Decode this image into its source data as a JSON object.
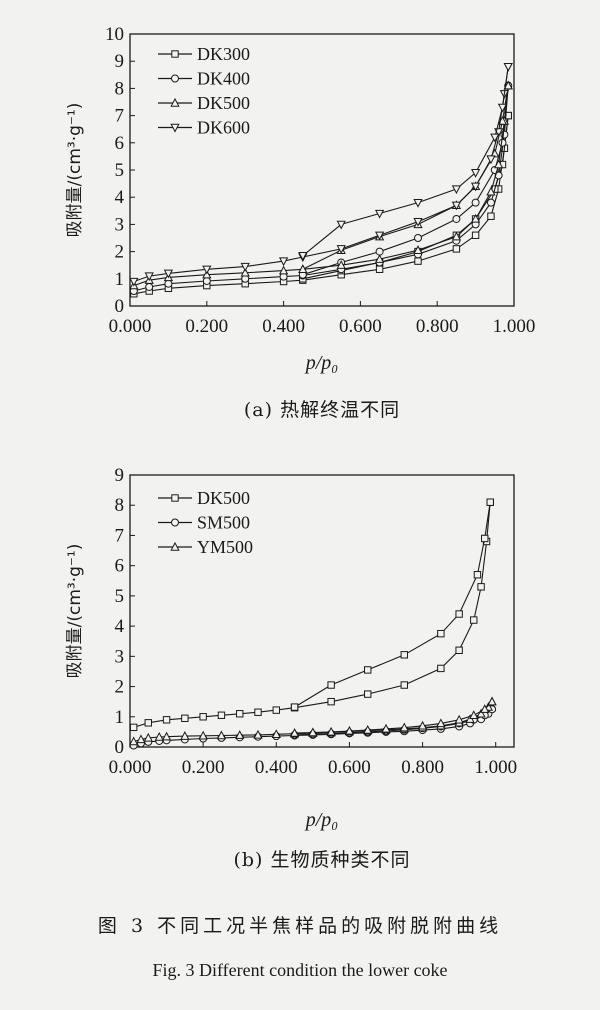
{
  "chart_data": [
    {
      "type": "line",
      "caption": "(a) 热解终温不同",
      "xlabel": "p/p₀",
      "ylabel": "吸附量/(cm³·g⁻¹)",
      "xlim": [
        0,
        1
      ],
      "ylim": [
        0,
        10
      ],
      "xticks": [
        "0.000",
        "0.200",
        "0.400",
        "0.600",
        "0.800",
        "1.000"
      ],
      "yticks": [
        "0",
        "1",
        "2",
        "3",
        "4",
        "5",
        "6",
        "7",
        "8",
        "9",
        "10"
      ],
      "legend_position": "top-left",
      "series": [
        {
          "name": "DK300",
          "marker": "square",
          "adsorption": [
            [
              0.01,
              0.45
            ],
            [
              0.05,
              0.55
            ],
            [
              0.1,
              0.65
            ],
            [
              0.2,
              0.75
            ],
            [
              0.3,
              0.82
            ],
            [
              0.4,
              0.9
            ],
            [
              0.45,
              0.95
            ],
            [
              0.55,
              1.15
            ],
            [
              0.65,
              1.35
            ],
            [
              0.75,
              1.65
            ],
            [
              0.85,
              2.1
            ],
            [
              0.9,
              2.6
            ],
            [
              0.94,
              3.3
            ],
            [
              0.96,
              4.3
            ],
            [
              0.975,
              5.8
            ],
            [
              0.985,
              7.0
            ]
          ],
          "desorption": [
            [
              0.985,
              7.0
            ],
            [
              0.97,
              5.2
            ],
            [
              0.95,
              4.3
            ],
            [
              0.9,
              3.2
            ],
            [
              0.85,
              2.6
            ],
            [
              0.75,
              2.0
            ],
            [
              0.65,
              1.6
            ],
            [
              0.55,
              1.3
            ],
            [
              0.45,
              1.0
            ]
          ]
        },
        {
          "name": "DK400",
          "marker": "circle",
          "adsorption": [
            [
              0.01,
              0.55
            ],
            [
              0.05,
              0.7
            ],
            [
              0.1,
              0.82
            ],
            [
              0.2,
              0.92
            ],
            [
              0.3,
              1.0
            ],
            [
              0.4,
              1.08
            ],
            [
              0.45,
              1.12
            ],
            [
              0.55,
              1.35
            ],
            [
              0.65,
              1.6
            ],
            [
              0.75,
              1.9
            ],
            [
              0.85,
              2.4
            ],
            [
              0.9,
              3.0
            ],
            [
              0.94,
              3.8
            ],
            [
              0.96,
              4.8
            ],
            [
              0.975,
              6.3
            ],
            [
              0.985,
              8.1
            ]
          ],
          "desorption": [
            [
              0.985,
              8.1
            ],
            [
              0.97,
              6.0
            ],
            [
              0.95,
              5.0
            ],
            [
              0.9,
              3.8
            ],
            [
              0.85,
              3.2
            ],
            [
              0.75,
              2.5
            ],
            [
              0.65,
              2.0
            ],
            [
              0.55,
              1.6
            ],
            [
              0.45,
              1.15
            ]
          ]
        },
        {
          "name": "DK500",
          "marker": "triangle-up",
          "adsorption": [
            [
              0.01,
              0.75
            ],
            [
              0.05,
              0.95
            ],
            [
              0.1,
              1.05
            ],
            [
              0.2,
              1.15
            ],
            [
              0.3,
              1.22
            ],
            [
              0.4,
              1.3
            ],
            [
              0.45,
              1.35
            ],
            [
              0.55,
              1.5
            ],
            [
              0.65,
              1.72
            ],
            [
              0.75,
              2.05
            ],
            [
              0.85,
              2.55
            ],
            [
              0.9,
              3.2
            ],
            [
              0.94,
              4.2
            ],
            [
              0.96,
              5.2
            ],
            [
              0.975,
              6.8
            ],
            [
              0.985,
              8.1
            ]
          ],
          "desorption": [
            [
              0.985,
              8.1
            ],
            [
              0.97,
              6.8
            ],
            [
              0.95,
              5.6
            ],
            [
              0.9,
              4.4
            ],
            [
              0.85,
              3.7
            ],
            [
              0.75,
              3.0
            ],
            [
              0.65,
              2.55
            ],
            [
              0.55,
              2.05
            ],
            [
              0.45,
              1.35
            ]
          ]
        },
        {
          "name": "DK600",
          "marker": "triangle-down",
          "adsorption": [
            [
              0.01,
              0.9
            ],
            [
              0.05,
              1.1
            ],
            [
              0.1,
              1.2
            ],
            [
              0.2,
              1.35
            ],
            [
              0.3,
              1.45
            ],
            [
              0.4,
              1.65
            ],
            [
              0.45,
              1.8
            ],
            [
              0.55,
              2.1
            ],
            [
              0.65,
              2.6
            ],
            [
              0.75,
              3.1
            ],
            [
              0.85,
              3.7
            ],
            [
              0.9,
              4.4
            ],
            [
              0.94,
              5.4
            ],
            [
              0.96,
              6.4
            ],
            [
              0.975,
              7.8
            ],
            [
              0.985,
              8.8
            ]
          ],
          "desorption": [
            [
              0.985,
              8.8
            ],
            [
              0.97,
              7.3
            ],
            [
              0.95,
              6.2
            ],
            [
              0.9,
              4.9
            ],
            [
              0.85,
              4.3
            ],
            [
              0.75,
              3.8
            ],
            [
              0.65,
              3.4
            ],
            [
              0.55,
              3.0
            ],
            [
              0.45,
              1.85
            ]
          ]
        }
      ]
    },
    {
      "type": "line",
      "caption": "(b) 生物质种类不同",
      "xlabel": "p/p₀",
      "ylabel": "吸附量/(cm³·g⁻¹)",
      "xlim": [
        0,
        1.05
      ],
      "ylim": [
        0,
        9
      ],
      "xticks": [
        "0.000",
        "0.200",
        "0.400",
        "0.600",
        "0.800",
        "1.000"
      ],
      "yticks": [
        "0",
        "1",
        "2",
        "3",
        "4",
        "5",
        "6",
        "7",
        "8",
        "9"
      ],
      "legend_position": "top-left",
      "series": [
        {
          "name": "DK500",
          "marker": "square",
          "adsorption": [
            [
              0.01,
              0.65
            ],
            [
              0.05,
              0.8
            ],
            [
              0.1,
              0.9
            ],
            [
              0.15,
              0.95
            ],
            [
              0.2,
              1.0
            ],
            [
              0.25,
              1.05
            ],
            [
              0.3,
              1.1
            ],
            [
              0.35,
              1.15
            ],
            [
              0.4,
              1.22
            ],
            [
              0.45,
              1.3
            ],
            [
              0.55,
              1.5
            ],
            [
              0.65,
              1.75
            ],
            [
              0.75,
              2.05
            ],
            [
              0.85,
              2.6
            ],
            [
              0.9,
              3.2
            ],
            [
              0.94,
              4.2
            ],
            [
              0.96,
              5.3
            ],
            [
              0.975,
              6.8
            ],
            [
              0.985,
              8.1
            ]
          ],
          "desorption": [
            [
              0.985,
              8.1
            ],
            [
              0.97,
              6.9
            ],
            [
              0.95,
              5.7
            ],
            [
              0.9,
              4.4
            ],
            [
              0.85,
              3.75
            ],
            [
              0.75,
              3.05
            ],
            [
              0.65,
              2.55
            ],
            [
              0.55,
              2.05
            ],
            [
              0.45,
              1.32
            ]
          ]
        },
        {
          "name": "SM500",
          "marker": "circle",
          "adsorption": [
            [
              0.01,
              0.05
            ],
            [
              0.03,
              0.12
            ],
            [
              0.05,
              0.17
            ],
            [
              0.08,
              0.2
            ],
            [
              0.1,
              0.22
            ],
            [
              0.15,
              0.25
            ],
            [
              0.2,
              0.28
            ],
            [
              0.25,
              0.3
            ],
            [
              0.3,
              0.32
            ],
            [
              0.35,
              0.34
            ],
            [
              0.4,
              0.36
            ],
            [
              0.45,
              0.38
            ],
            [
              0.5,
              0.4
            ],
            [
              0.55,
              0.42
            ],
            [
              0.6,
              0.45
            ],
            [
              0.65,
              0.47
            ],
            [
              0.7,
              0.5
            ],
            [
              0.75,
              0.52
            ],
            [
              0.8,
              0.56
            ],
            [
              0.85,
              0.6
            ],
            [
              0.9,
              0.68
            ],
            [
              0.93,
              0.78
            ],
            [
              0.96,
              0.92
            ],
            [
              0.98,
              1.1
            ],
            [
              0.99,
              1.25
            ]
          ],
          "desorption": [
            [
              0.99,
              1.25
            ],
            [
              0.97,
              1.05
            ],
            [
              0.94,
              0.9
            ],
            [
              0.9,
              0.78
            ],
            [
              0.85,
              0.68
            ],
            [
              0.8,
              0.62
            ],
            [
              0.75,
              0.57
            ],
            [
              0.7,
              0.53
            ],
            [
              0.65,
              0.5
            ],
            [
              0.6,
              0.47
            ],
            [
              0.55,
              0.44
            ],
            [
              0.5,
              0.42
            ],
            [
              0.45,
              0.4
            ]
          ]
        },
        {
          "name": "YM500",
          "marker": "triangle-up",
          "adsorption": [
            [
              0.01,
              0.18
            ],
            [
              0.03,
              0.25
            ],
            [
              0.05,
              0.3
            ],
            [
              0.08,
              0.33
            ],
            [
              0.1,
              0.34
            ],
            [
              0.15,
              0.36
            ],
            [
              0.2,
              0.37
            ],
            [
              0.25,
              0.38
            ],
            [
              0.3,
              0.39
            ],
            [
              0.35,
              0.4
            ],
            [
              0.4,
              0.42
            ],
            [
              0.45,
              0.44
            ],
            [
              0.5,
              0.46
            ],
            [
              0.55,
              0.48
            ],
            [
              0.6,
              0.51
            ],
            [
              0.65,
              0.54
            ],
            [
              0.7,
              0.57
            ],
            [
              0.75,
              0.6
            ],
            [
              0.8,
              0.64
            ],
            [
              0.85,
              0.7
            ],
            [
              0.9,
              0.8
            ],
            [
              0.93,
              0.92
            ],
            [
              0.96,
              1.1
            ],
            [
              0.98,
              1.32
            ],
            [
              0.99,
              1.5
            ]
          ],
          "desorption": [
            [
              0.99,
              1.5
            ],
            [
              0.97,
              1.25
            ],
            [
              0.94,
              1.05
            ],
            [
              0.9,
              0.9
            ],
            [
              0.85,
              0.78
            ],
            [
              0.8,
              0.7
            ],
            [
              0.75,
              0.64
            ],
            [
              0.7,
              0.6
            ],
            [
              0.65,
              0.56
            ],
            [
              0.6,
              0.53
            ],
            [
              0.55,
              0.5
            ],
            [
              0.5,
              0.48
            ],
            [
              0.45,
              0.46
            ]
          ]
        }
      ]
    }
  ],
  "figure": {
    "caption_cn": "图 3  不同工况半焦样品的吸附脱附曲线",
    "caption_en": "Fig. 3   Different condition the lower coke"
  }
}
